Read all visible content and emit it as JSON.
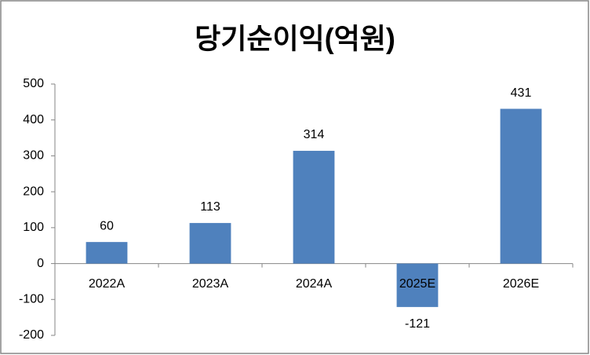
{
  "chart_data": {
    "type": "bar",
    "title": "당기순이익(억원)",
    "categories": [
      "2022A",
      "2023A",
      "2024A",
      "2025E",
      "2026E"
    ],
    "values": [
      60,
      113,
      314,
      -121,
      431
    ],
    "color": "#4f81bd",
    "ylim": [
      -200,
      500
    ],
    "yticks": [
      -200,
      -100,
      0,
      100,
      200,
      300,
      400,
      500
    ],
    "grid": false,
    "data_labels": true
  }
}
